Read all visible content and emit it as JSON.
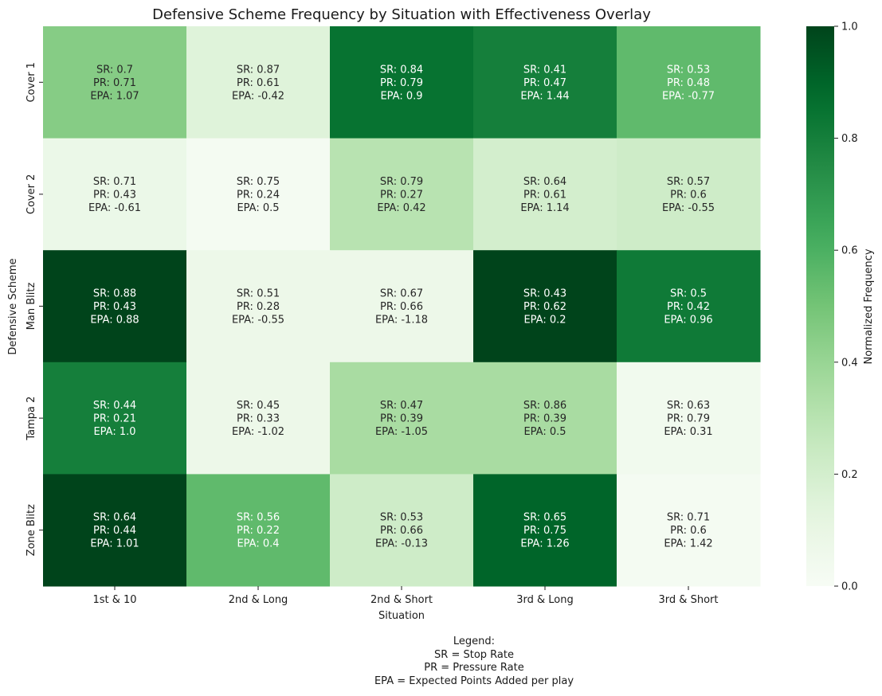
{
  "chart_data": {
    "type": "heatmap",
    "title": "Defensive Scheme Frequency by Situation with Effectiveness Overlay",
    "xlabel": "Situation",
    "ylabel": "Defensive Scheme",
    "x_categories": [
      "1st & 10",
      "2nd & Long",
      "2nd & Short",
      "3rd & Long",
      "3rd & Short"
    ],
    "y_categories": [
      "Cover 1",
      "Cover 2",
      "Man Blitz",
      "Tampa 2",
      "Zone Blitz"
    ],
    "values": [
      [
        0.45,
        0.15,
        0.85,
        0.8,
        0.55
      ],
      [
        0.08,
        0.02,
        0.3,
        0.2,
        0.22
      ],
      [
        1.0,
        0.07,
        0.07,
        1.0,
        0.82
      ],
      [
        0.8,
        0.07,
        0.35,
        0.35,
        0.04
      ],
      [
        1.0,
        0.55,
        0.22,
        0.9,
        0.02
      ]
    ],
    "annotations": [
      [
        {
          "SR": "0.7",
          "PR": "0.71",
          "EPA": "1.07"
        },
        {
          "SR": "0.87",
          "PR": "0.61",
          "EPA": "-0.42"
        },
        {
          "SR": "0.84",
          "PR": "0.79",
          "EPA": "0.9"
        },
        {
          "SR": "0.41",
          "PR": "0.47",
          "EPA": "1.44"
        },
        {
          "SR": "0.53",
          "PR": "0.48",
          "EPA": "-0.77"
        }
      ],
      [
        {
          "SR": "0.71",
          "PR": "0.43",
          "EPA": "-0.61"
        },
        {
          "SR": "0.75",
          "PR": "0.24",
          "EPA": "0.5"
        },
        {
          "SR": "0.79",
          "PR": "0.27",
          "EPA": "0.42"
        },
        {
          "SR": "0.64",
          "PR": "0.61",
          "EPA": "1.14"
        },
        {
          "SR": "0.57",
          "PR": "0.6",
          "EPA": "-0.55"
        }
      ],
      [
        {
          "SR": "0.88",
          "PR": "0.43",
          "EPA": "0.88"
        },
        {
          "SR": "0.51",
          "PR": "0.28",
          "EPA": "-0.55"
        },
        {
          "SR": "0.67",
          "PR": "0.66",
          "EPA": "-1.18"
        },
        {
          "SR": "0.43",
          "PR": "0.62",
          "EPA": "0.2"
        },
        {
          "SR": "0.5",
          "PR": "0.42",
          "EPA": "0.96"
        }
      ],
      [
        {
          "SR": "0.44",
          "PR": "0.21",
          "EPA": "1.0"
        },
        {
          "SR": "0.45",
          "PR": "0.33",
          "EPA": "-1.02"
        },
        {
          "SR": "0.47",
          "PR": "0.39",
          "EPA": "-1.05"
        },
        {
          "SR": "0.86",
          "PR": "0.39",
          "EPA": "0.5"
        },
        {
          "SR": "0.63",
          "PR": "0.79",
          "EPA": "0.31"
        }
      ],
      [
        {
          "SR": "0.64",
          "PR": "0.44",
          "EPA": "1.01"
        },
        {
          "SR": "0.56",
          "PR": "0.22",
          "EPA": "0.4"
        },
        {
          "SR": "0.53",
          "PR": "0.66",
          "EPA": "-0.13"
        },
        {
          "SR": "0.65",
          "PR": "0.75",
          "EPA": "1.26"
        },
        {
          "SR": "0.71",
          "PR": "0.6",
          "EPA": "1.42"
        }
      ]
    ],
    "colorbar": {
      "label": "Normalized Frequency",
      "range": [
        0.0,
        1.0
      ],
      "ticks": [
        "0.0",
        "0.2",
        "0.4",
        "0.6",
        "0.8",
        "1.0"
      ],
      "colormap": "Greens"
    },
    "grid": false
  },
  "legend_note": {
    "lines": [
      "Legend:",
      "SR = Stop Rate",
      "PR = Pressure Rate",
      "EPA = Expected Points Added per play"
    ]
  },
  "colors": {
    "light_text": "#ffffff",
    "dark_text": "#262626",
    "greens": [
      "#f7fcf5",
      "#e5f5e0",
      "#c7e9c0",
      "#a1d99b",
      "#74c476",
      "#41ab5d",
      "#238b45",
      "#006d2c",
      "#00441b"
    ]
  }
}
